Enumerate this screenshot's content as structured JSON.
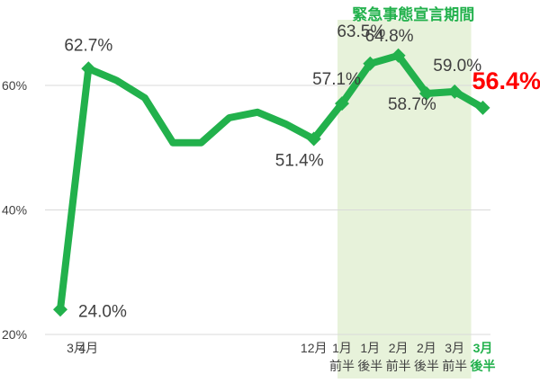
{
  "chart_data": {
    "type": "line",
    "title": "",
    "xlabel": "",
    "ylabel": "",
    "ylim": [
      20,
      69
    ],
    "yticks": [
      20,
      40,
      60
    ],
    "ytick_format": "{v}%",
    "grid": "horizontal",
    "x": [
      "3月",
      "4月",
      "",
      "",
      "",
      "",
      "",
      "",
      "",
      "12月",
      "1月前半",
      "1月後半",
      "2月前半",
      "2月後半",
      "3月前半",
      "3月後半"
    ],
    "series": [
      {
        "color": "#22b14c",
        "values": [
          24.0,
          62.7,
          60.8,
          58.0,
          50.8,
          50.8,
          54.8,
          55.7,
          53.8,
          51.4,
          57.1,
          63.5,
          64.8,
          58.7,
          59.0,
          56.4
        ]
      }
    ],
    "tick_labels": [
      {
        "index": 0,
        "lines": [
          "3月"
        ],
        "bold": false
      },
      {
        "index": 1,
        "lines": [
          "4月"
        ],
        "bold": false
      },
      {
        "index": 9,
        "lines": [
          "12月"
        ],
        "bold": false
      },
      {
        "index": 10,
        "lines": [
          "1月",
          "前半"
        ],
        "bold": false
      },
      {
        "index": 11,
        "lines": [
          "1月",
          "後半"
        ],
        "bold": false
      },
      {
        "index": 12,
        "lines": [
          "2月",
          "前半"
        ],
        "bold": false
      },
      {
        "index": 13,
        "lines": [
          "2月",
          "後半"
        ],
        "bold": false
      },
      {
        "index": 14,
        "lines": [
          "3月",
          "前半"
        ],
        "bold": false
      },
      {
        "index": 15,
        "lines": [
          "3月",
          "後半"
        ],
        "bold": true,
        "color": "#22b14c"
      }
    ],
    "data_labels": [
      {
        "index": 0,
        "text": "24.0%"
      },
      {
        "index": 1,
        "text": "62.7%"
      },
      {
        "index": 9,
        "text": "51.4%"
      },
      {
        "index": 10,
        "text": "57.1%"
      },
      {
        "index": 11,
        "text": "63.5%"
      },
      {
        "index": 12,
        "text": "64.8%"
      },
      {
        "index": 13,
        "text": "58.7%"
      },
      {
        "index": 14,
        "text": "59.0%"
      },
      {
        "index": 15,
        "text": "56.4%",
        "highlight": true
      }
    ],
    "highlight_label_color": "#ff0000",
    "shaded_region": {
      "label": "緊急事態宣言期間",
      "from_index": 10,
      "to_index": 15,
      "fill": "#e7f2da",
      "label_color": "#22b14c"
    },
    "colors": {
      "line": "#22b14c",
      "axis_text": "#404040",
      "grid": "#d9d9d9"
    }
  }
}
